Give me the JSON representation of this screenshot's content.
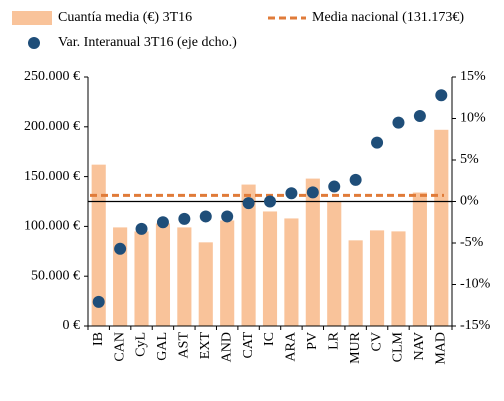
{
  "chart_data": {
    "type": "bar",
    "categories": [
      "IB",
      "CAN",
      "CyL",
      "GAL",
      "AST",
      "EXT",
      "AND",
      "CAT",
      "IC",
      "ARA",
      "PV",
      "LR",
      "MUR",
      "CV",
      "CLM",
      "NAV",
      "MAD"
    ],
    "series": [
      {
        "name": "Cuantía media (€) 3T16",
        "type": "bar",
        "color": "#f9c39a",
        "values": [
          162000,
          99000,
          95000,
          103000,
          99000,
          84000,
          106000,
          142000,
          115000,
          108000,
          148000,
          125000,
          86000,
          96000,
          95000,
          134000,
          197000
        ]
      },
      {
        "name": "Var. Interanual 3T16 (eje dcho.)",
        "type": "scatter",
        "axis": "y2",
        "color": "#1f4e79",
        "values": [
          -12.1,
          -5.7,
          -3.3,
          -2.5,
          -2.1,
          -1.8,
          -1.8,
          -0.2,
          0.0,
          1.0,
          1.1,
          1.8,
          2.6,
          7.1,
          9.5,
          10.3,
          12.8
        ]
      }
    ],
    "reference_line": {
      "name": "Media nacional (131.173€)",
      "value": 131173,
      "color": "#e07b39"
    },
    "ylim": [
      0,
      250000
    ],
    "yticks": [
      {
        "value": 0,
        "label": "0 €"
      },
      {
        "value": 50000,
        "label": "50.000  €"
      },
      {
        "value": 100000,
        "label": "100.000  €"
      },
      {
        "value": 150000,
        "label": "150.000  €"
      },
      {
        "value": 200000,
        "label": "200.000  €"
      },
      {
        "value": 250000,
        "label": "250.000  €"
      }
    ],
    "y2lim": [
      -15,
      15
    ],
    "y2ticks": [
      {
        "value": -15,
        "label": "-15%"
      },
      {
        "value": -10,
        "label": "-10%"
      },
      {
        "value": -5,
        "label": "-5%"
      },
      {
        "value": 0,
        "label": "0%"
      },
      {
        "value": 5,
        "label": "5%"
      },
      {
        "value": 10,
        "label": "10%"
      },
      {
        "value": 15,
        "label": "15%"
      }
    ]
  }
}
